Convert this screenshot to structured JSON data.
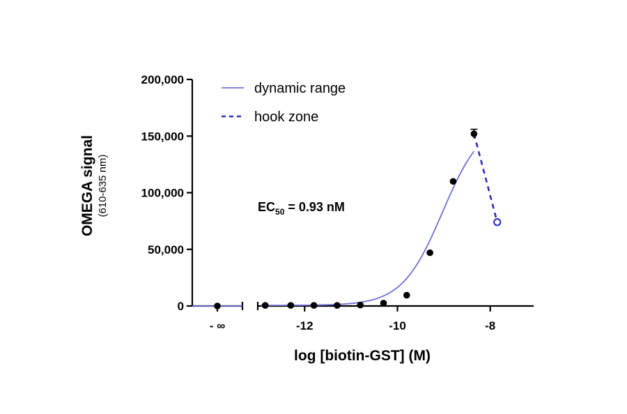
{
  "chart_data": {
    "type": "line",
    "ylabel": "OMEGA signal",
    "ylabel_sub": "(610-635 nm)",
    "xlabel": "log [biotin-GST] (M)",
    "ylim": [
      0,
      200000
    ],
    "yticks": [
      0,
      50000,
      100000,
      150000,
      200000
    ],
    "ytick_labels": [
      "0",
      "50,000",
      "100,000",
      "150,000",
      "200,000"
    ],
    "xlim": [
      -13,
      -7.5
    ],
    "xticks": [
      -12,
      -10,
      -8
    ],
    "xtick_labels": [
      "-12",
      "-10",
      "-8"
    ],
    "zero_point_label": "- ∞",
    "zero_point_y": 0,
    "legend": {
      "position": "top-left",
      "entries": [
        {
          "label": "dynamic range",
          "style": "solid"
        },
        {
          "label": "hook zone",
          "style": "dashed"
        }
      ]
    },
    "annotation": {
      "prefix": "EC",
      "subscript": "50",
      "suffix": " = 0.93 nM"
    },
    "colors": {
      "curve": "#6f6fd8",
      "hook": "#2b2bc4",
      "points": "#000000",
      "open_point": "#2b2bc4"
    },
    "fit": {
      "model": "4-parameter logistic",
      "bottom": 500,
      "top": 165000,
      "log_ec50": -9.03,
      "hill": 1.0,
      "x_end": -8.35
    },
    "series": [
      {
        "name": "dynamic range",
        "x": [
          -12.85,
          -12.3,
          -11.8,
          -11.3,
          -10.8,
          -10.3,
          -9.8,
          -9.3,
          -8.8,
          -8.35
        ],
        "y": [
          500,
          500,
          500,
          500,
          800,
          2500,
          9500,
          47000,
          110000,
          152000
        ],
        "err": [
          0,
          0,
          0,
          0,
          0,
          0,
          0,
          0,
          0,
          4000
        ]
      },
      {
        "name": "hook zone",
        "x": [
          -8.35,
          -7.85
        ],
        "y": [
          152000,
          74000
        ],
        "open_last": true
      }
    ]
  }
}
